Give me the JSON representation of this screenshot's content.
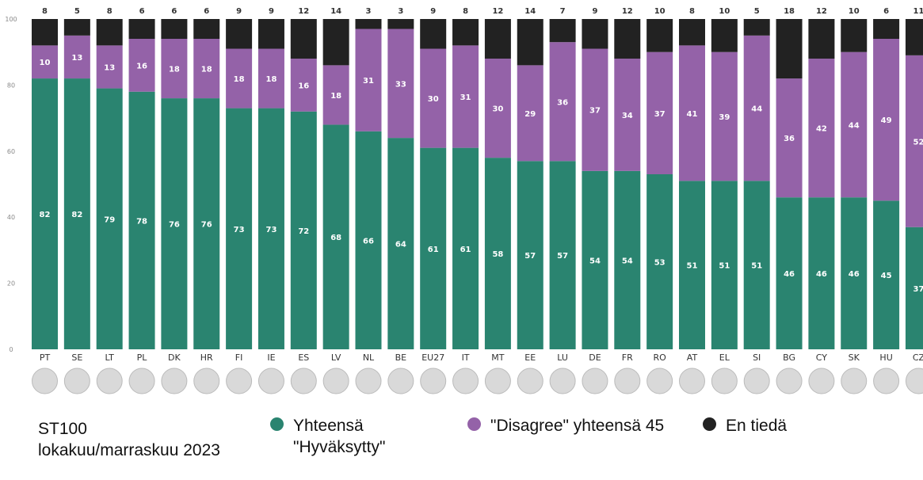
{
  "chart_data": {
    "type": "bar",
    "stacked": true,
    "ylim": [
      0,
      100
    ],
    "yticks": [
      0,
      20,
      40,
      60,
      80,
      100
    ],
    "categories": [
      "PT",
      "SE",
      "LT",
      "PL",
      "DK",
      "HR",
      "FI",
      "IE",
      "ES",
      "LV",
      "NL",
      "BE",
      "EU27",
      "IT",
      "MT",
      "EE",
      "LU",
      "DE",
      "FR",
      "RO",
      "AT",
      "EL",
      "SI",
      "BG",
      "CY",
      "SK",
      "HU",
      "CZ"
    ],
    "series": [
      {
        "name": "Yhteensä \"Hyväksytty\"",
        "color": "#2a8470",
        "values": [
          82,
          82,
          79,
          78,
          76,
          76,
          73,
          73,
          72,
          68,
          66,
          64,
          61,
          61,
          58,
          57,
          57,
          54,
          54,
          53,
          51,
          51,
          51,
          46,
          46,
          46,
          45,
          37
        ]
      },
      {
        "name": "\"Disagree\" yhteensä 45",
        "color": "#9462a8",
        "values": [
          10,
          13,
          13,
          16,
          18,
          18,
          18,
          18,
          16,
          18,
          31,
          33,
          30,
          31,
          30,
          29,
          36,
          37,
          34,
          37,
          41,
          39,
          44,
          36,
          42,
          44,
          49,
          52
        ]
      },
      {
        "name": "En tiedä",
        "color": "#222222",
        "values": [
          8,
          5,
          8,
          6,
          6,
          6,
          9,
          9,
          12,
          14,
          3,
          3,
          9,
          8,
          12,
          14,
          7,
          9,
          12,
          10,
          8,
          10,
          5,
          18,
          12,
          10,
          6,
          11
        ]
      }
    ],
    "flags": [
      "PT",
      "SE",
      "LT",
      "PL",
      "DK",
      "HR",
      "FI",
      "IE",
      "ES",
      "LV",
      "NL",
      "BE",
      "EU27",
      "IT",
      "MT",
      "EE",
      "LU",
      "DE",
      "FR",
      "RO",
      "AT",
      "EL",
      "SI",
      "BG",
      "CY",
      "SK",
      "HU",
      "CZ"
    ]
  },
  "legend": {
    "source": "ST100 lokakuu/marraskuu 2023",
    "agree": "Yhteensä \"Hyväksytty\"",
    "disagree": "\"Disagree\" yhteensä 45",
    "dontknow": "En tiedä",
    "agree_color": "#2a8470",
    "disagree_color": "#9462a8",
    "dontknow_color": "#222222"
  }
}
